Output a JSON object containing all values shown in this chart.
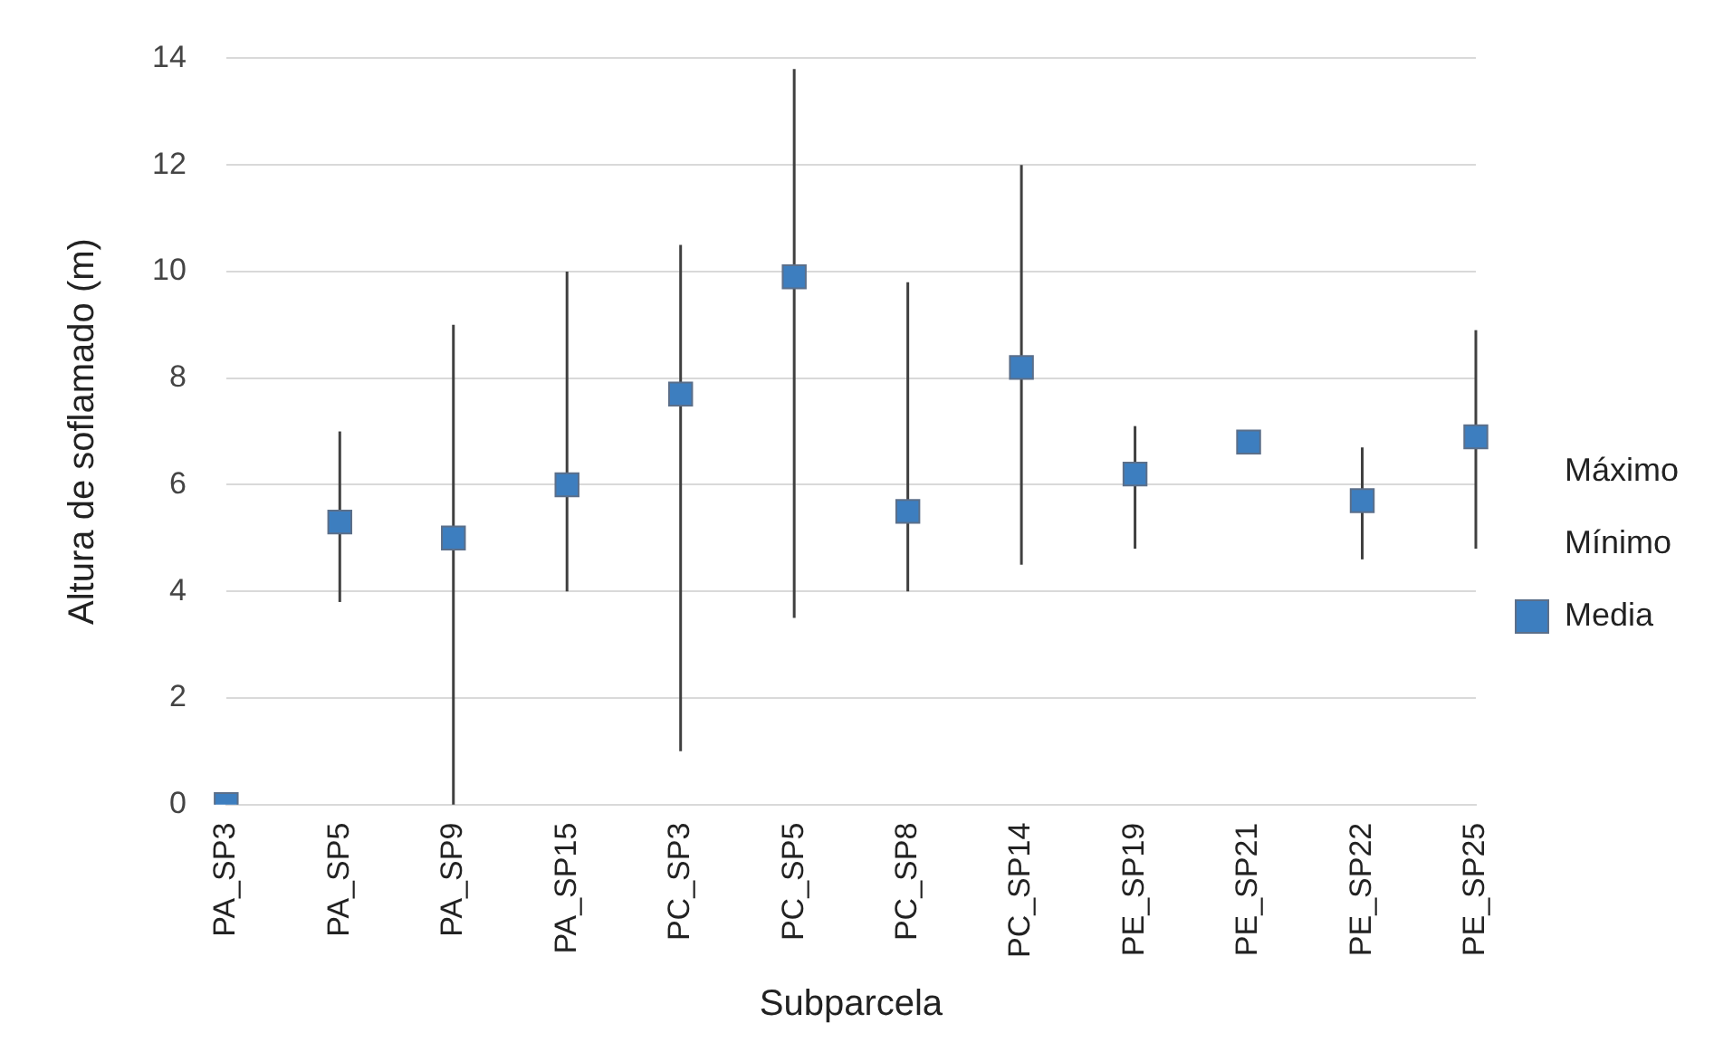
{
  "chart_data": {
    "type": "scatter",
    "xlabel": "Subparcela",
    "ylabel": "Altura de soflamado (m)",
    "categories": [
      "PA_SP3",
      "PA_SP5",
      "PA_SP9",
      "PA_SP15",
      "PC_SP3",
      "PC_SP5",
      "PC_SP8",
      "PC_SP14",
      "PE_SP19",
      "PE_SP21",
      "PE_SP22",
      "PE_SP25"
    ],
    "series": [
      {
        "name": "Media",
        "color": "#3d7ebf",
        "values": [
          0,
          5.3,
          5,
          6,
          7.7,
          9.9,
          5.5,
          8.2,
          6.2,
          6.8,
          5.7,
          6.9
        ],
        "errors": [
          null,
          [
            3.8,
            7
          ],
          [
            0,
            9
          ],
          [
            4,
            10
          ],
          [
            1,
            10.5
          ],
          [
            3.5,
            13.8
          ],
          [
            4,
            9.8
          ],
          [
            4.5,
            12
          ],
          [
            4.8,
            7.1
          ],
          null,
          [
            4.6,
            6.7
          ],
          [
            4.8,
            8.9
          ]
        ]
      }
    ],
    "annotations": [
      "Máximo",
      "Mínimo"
    ],
    "marker": "square",
    "ylim": [
      0,
      14
    ],
    "yticks": [
      0,
      2,
      4,
      6,
      8,
      10,
      12,
      14
    ],
    "grid": "y",
    "legend": "right"
  }
}
